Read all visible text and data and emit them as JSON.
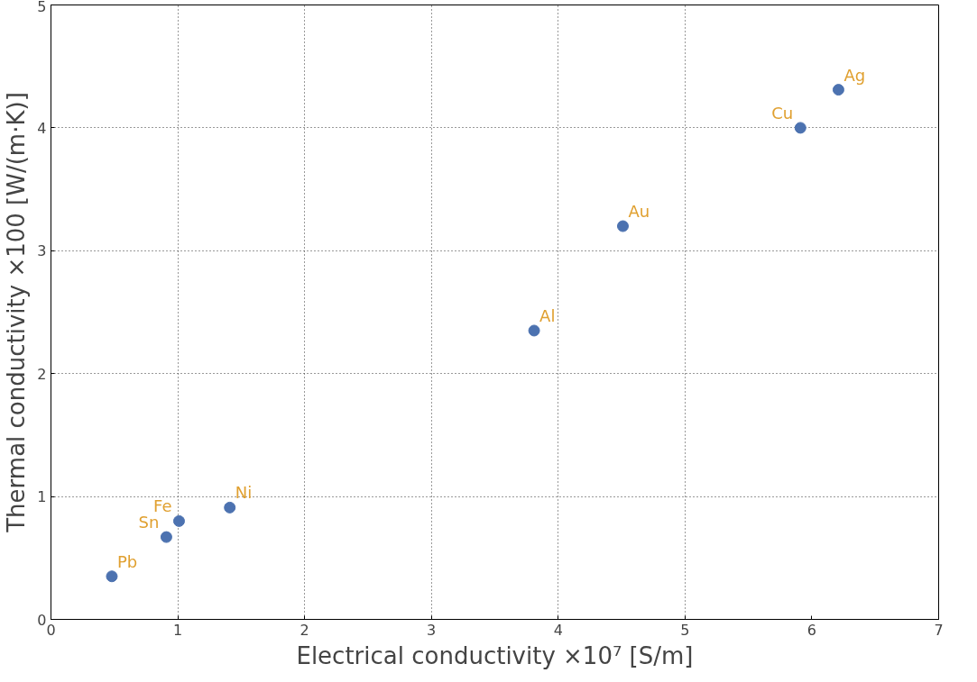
{
  "chart_data": {
    "type": "scatter",
    "xlabel": "Electrical conductivity ×10⁷ [S/m]",
    "ylabel": "Thermal conductivity ×100 [W/(m·K)]",
    "x": [
      0.48,
      0.91,
      1.01,
      1.41,
      3.81,
      4.51,
      5.91,
      6.21
    ],
    "series": [
      {
        "color": "#4c72b0",
        "values": [
          0.35,
          0.67,
          0.8,
          0.91,
          2.35,
          3.2,
          4.0,
          4.31
        ]
      }
    ],
    "annotations": [
      {
        "text": "Pb",
        "x": 0.48,
        "y": 0.35
      },
      {
        "text": "Sn",
        "x": 0.91,
        "y": 0.67
      },
      {
        "text": "Fe",
        "x": 1.01,
        "y": 0.8
      },
      {
        "text": "Ni",
        "x": 1.41,
        "y": 0.91
      },
      {
        "text": "Al",
        "x": 3.81,
        "y": 2.35
      },
      {
        "text": "Au",
        "x": 4.51,
        "y": 3.2
      },
      {
        "text": "Cu",
        "x": 5.91,
        "y": 4.0
      },
      {
        "text": "Ag",
        "x": 6.21,
        "y": 4.31
      }
    ],
    "xlim": [
      0,
      7
    ],
    "ylim": [
      0,
      5
    ],
    "xticks": [
      0,
      1,
      2,
      3,
      4,
      5,
      6,
      7
    ],
    "yticks": [
      0,
      1,
      2,
      3,
      4,
      5
    ],
    "grid": true,
    "marker": "circle"
  }
}
